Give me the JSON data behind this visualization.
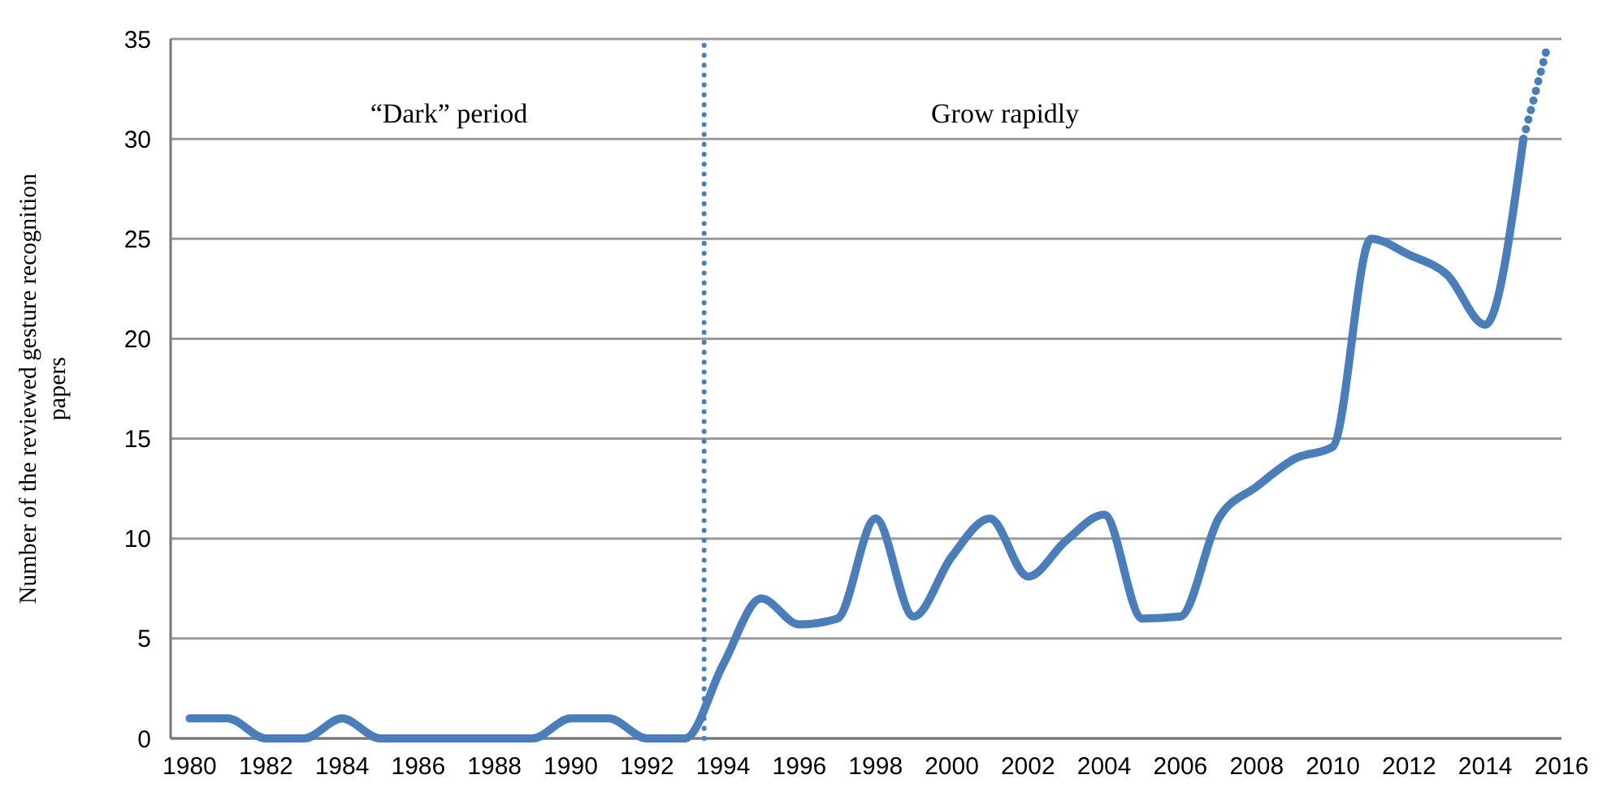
{
  "chart_data": {
    "type": "line",
    "ylabel": "Number of the reviewed gesture recognition papers",
    "x": [
      1980,
      1981,
      1982,
      1983,
      1984,
      1985,
      1986,
      1987,
      1988,
      1989,
      1990,
      1991,
      1992,
      1993,
      1994,
      1995,
      1996,
      1997,
      1998,
      1999,
      2000,
      2001,
      2002,
      2003,
      2004,
      2005,
      2006,
      2007,
      2008,
      2009,
      2010,
      2011,
      2012,
      2013,
      2014,
      2015
    ],
    "series": [
      {
        "color": "#4a7ebb",
        "line_style": "solid",
        "values": [
          1,
          1,
          0,
          0,
          1,
          0,
          0,
          0,
          0,
          0,
          1,
          1,
          0,
          0,
          3.7,
          7,
          5.7,
          6,
          11,
          6.1,
          9.1,
          11,
          8.1,
          9.9,
          11.2,
          6,
          6.1,
          11,
          12.6,
          14,
          14.6,
          25,
          24.2,
          23.2,
          20.7,
          30
        ]
      },
      {
        "type": "line",
        "color": "#4a7ebb",
        "line_style": "dotted",
        "x": [
          2015,
          2015.6
        ],
        "values": [
          30,
          34.4
        ]
      }
    ],
    "xlim": [
      1979.5,
      2016
    ],
    "xticks": [
      1980,
      1982,
      1984,
      1986,
      1988,
      1990,
      1992,
      1994,
      1996,
      1998,
      2000,
      2002,
      2004,
      2006,
      2008,
      2010,
      2012,
      2014,
      2016
    ],
    "ylim": [
      0,
      35
    ],
    "yticks": [
      0,
      5,
      10,
      15,
      20,
      25,
      30,
      35
    ],
    "grid": "y",
    "ref_lines": [
      {
        "axis": "x",
        "value": 1993.5,
        "color": "#4a7ebb",
        "line_style": "dotted"
      }
    ],
    "annotations": [
      "“Dark” period",
      "Grow rapidly"
    ]
  }
}
